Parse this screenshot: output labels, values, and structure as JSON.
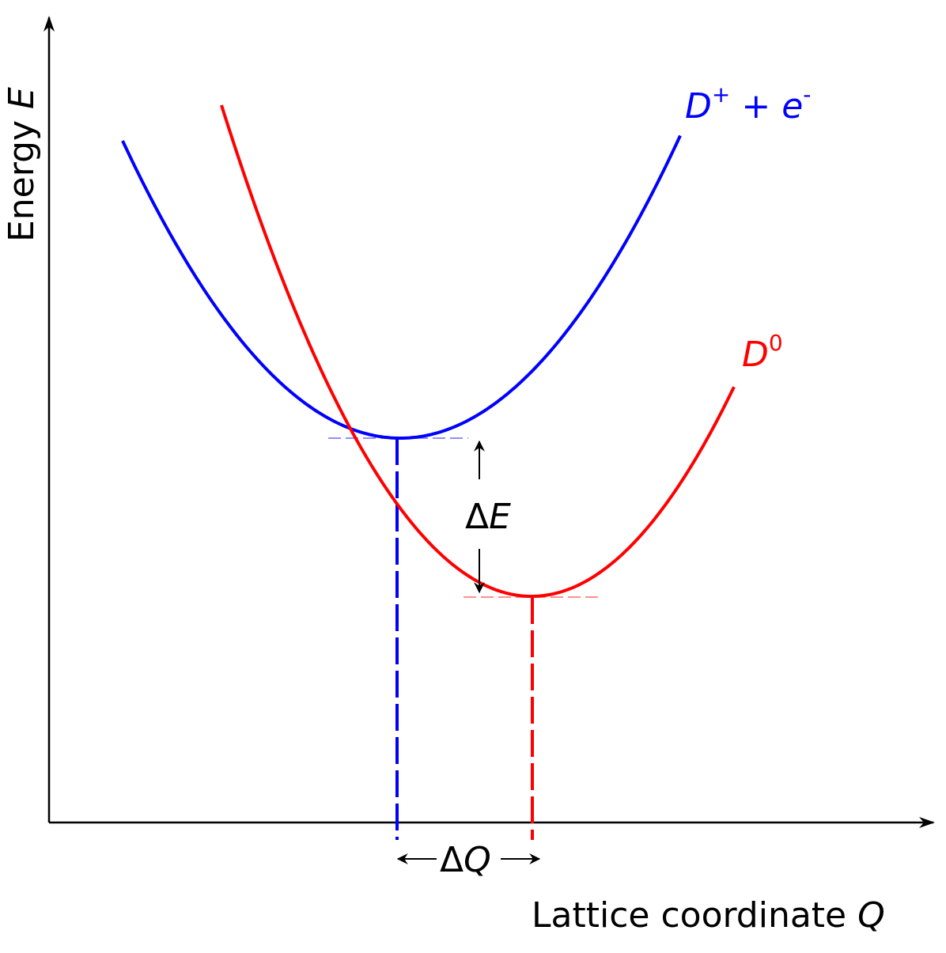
{
  "axes": {
    "y_label_text": "Energy ",
    "y_label_var": "E",
    "x_label_text": "Lattice coordinate ",
    "x_label_var": "Q"
  },
  "curves": {
    "ionized": {
      "label_base": "D",
      "label_sup": "+",
      "label_mid": " + ",
      "label_e": "e",
      "label_e_sup": "-",
      "color": "#0000ff"
    },
    "neutral": {
      "label_base": "D",
      "label_sup": "0",
      "color": "#ff0000"
    }
  },
  "annotations": {
    "delta_e_symbol": "Δ",
    "delta_e_var": "E",
    "delta_q_symbol": "Δ",
    "delta_q_var": "Q"
  },
  "colors": {
    "axis": "#000000",
    "ionized_guide": "#8f8fff",
    "neutral_guide": "#ff8f8f",
    "background": "#ffffff"
  }
}
